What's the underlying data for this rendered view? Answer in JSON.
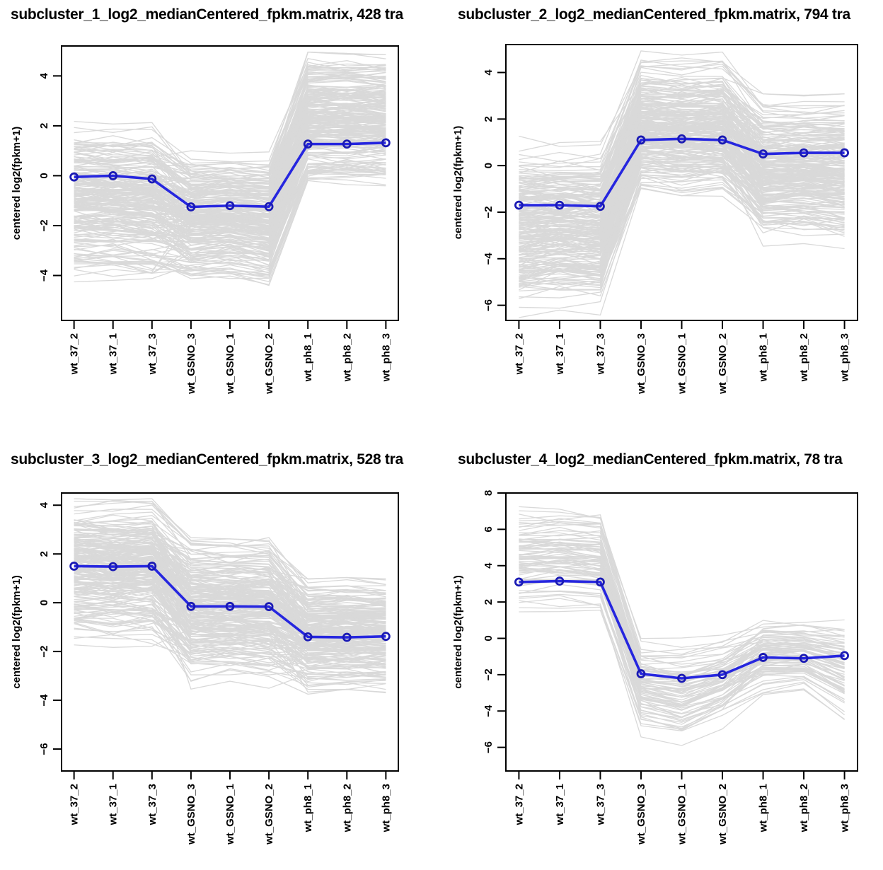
{
  "figure": {
    "background": "#ffffff",
    "axis_color": "#000000",
    "median_line_color": "#2626df",
    "median_marker_color": "#1a1ab4",
    "transcript_line_color": "#d7d7d7",
    "ylabel": "centered log2(fpkm+1)",
    "samples": [
      "wt_37_2",
      "wt_37_1",
      "wt_37_3",
      "wt_GSNO_3",
      "wt_GSNO_1",
      "wt_GSNO_2",
      "wt_ph8_1",
      "wt_ph8_2",
      "wt_ph8_3"
    ]
  },
  "chart_data": [
    {
      "type": "line",
      "title": "subcluster_1_log2_medianCentered_fpkm.matrix, 428 tra",
      "subcluster": 1,
      "transcript_count": 428,
      "categories": [
        "wt_37_2",
        "wt_37_1",
        "wt_37_3",
        "wt_GSNO_3",
        "wt_GSNO_1",
        "wt_GSNO_2",
        "wt_ph8_1",
        "wt_ph8_2",
        "wt_ph8_3"
      ],
      "xlabel": "",
      "ylabel": "centered log2(fpkm+1)",
      "ylim": [
        -5.8,
        5.2
      ],
      "yticks": [
        -4,
        -2,
        0,
        2,
        4
      ],
      "grid": false,
      "legend_position": "none",
      "series": [
        {
          "name": "median",
          "color": "#2626df",
          "values": [
            -0.05,
            0.0,
            -0.13,
            -1.25,
            -1.2,
            -1.24,
            1.27,
            1.27,
            1.32
          ]
        },
        {
          "name": "transcript-cloud-upper-envelope",
          "color": "#d7d7d7",
          "values": [
            2.0,
            1.9,
            1.95,
            0.85,
            0.9,
            0.8,
            4.8,
            4.75,
            4.7
          ]
        },
        {
          "name": "transcript-cloud-lower-envelope",
          "color": "#d7d7d7",
          "values": [
            -3.9,
            -3.85,
            -4.0,
            -4.1,
            -4.0,
            -4.3,
            -0.3,
            -0.25,
            -0.3
          ]
        }
      ]
    },
    {
      "type": "line",
      "title": "subcluster_2_log2_medianCentered_fpkm.matrix, 794 tra",
      "subcluster": 2,
      "transcript_count": 794,
      "categories": [
        "wt_37_2",
        "wt_37_1",
        "wt_37_3",
        "wt_GSNO_3",
        "wt_GSNO_1",
        "wt_GSNO_2",
        "wt_ph8_1",
        "wt_ph8_2",
        "wt_ph8_3"
      ],
      "xlabel": "",
      "ylabel": "centered log2(fpkm+1)",
      "ylim": [
        -6.65,
        5.2
      ],
      "yticks": [
        -6,
        -4,
        -2,
        0,
        2,
        4
      ],
      "grid": false,
      "legend_position": "none",
      "series": [
        {
          "name": "median",
          "color": "#2626df",
          "values": [
            -1.7,
            -1.7,
            -1.75,
            1.1,
            1.15,
            1.1,
            0.5,
            0.55,
            0.55
          ]
        },
        {
          "name": "transcript-cloud-upper-envelope",
          "color": "#d7d7d7",
          "values": [
            1.05,
            0.95,
            1.0,
            4.75,
            4.75,
            4.7,
            2.9,
            2.85,
            2.9
          ]
        },
        {
          "name": "transcript-cloud-lower-envelope",
          "color": "#d7d7d7",
          "values": [
            -6.1,
            -5.8,
            -6.0,
            -1.15,
            -1.3,
            -1.2,
            -3.1,
            -3.0,
            -3.2
          ]
        }
      ]
    },
    {
      "type": "line",
      "title": "subcluster_3_log2_medianCentered_fpkm.matrix, 528 tra",
      "subcluster": 3,
      "transcript_count": 528,
      "categories": [
        "wt_37_2",
        "wt_37_1",
        "wt_37_3",
        "wt_GSNO_3",
        "wt_GSNO_1",
        "wt_GSNO_2",
        "wt_ph8_1",
        "wt_ph8_2",
        "wt_ph8_3"
      ],
      "xlabel": "",
      "ylabel": "centered log2(fpkm+1)",
      "ylim": [
        -6.9,
        4.5
      ],
      "yticks": [
        -6,
        -4,
        -2,
        0,
        2,
        4
      ],
      "grid": false,
      "legend_position": "none",
      "series": [
        {
          "name": "median",
          "color": "#2626df",
          "values": [
            1.5,
            1.48,
            1.5,
            -0.15,
            -0.15,
            -0.16,
            -1.4,
            -1.42,
            -1.38
          ]
        },
        {
          "name": "transcript-cloud-upper-envelope",
          "color": "#d7d7d7",
          "values": [
            4.1,
            4.05,
            4.1,
            2.5,
            2.45,
            2.5,
            0.85,
            0.9,
            0.85
          ]
        },
        {
          "name": "transcript-cloud-lower-envelope",
          "color": "#d7d7d7",
          "values": [
            -1.4,
            -1.5,
            -1.45,
            -3.2,
            -3.15,
            -3.3,
            -3.6,
            -3.55,
            -3.6
          ]
        }
      ]
    },
    {
      "type": "line",
      "title": "subcluster_4_log2_medianCentered_fpkm.matrix, 78 tra",
      "subcluster": 4,
      "transcript_count": 78,
      "categories": [
        "wt_37_2",
        "wt_37_1",
        "wt_37_3",
        "wt_GSNO_3",
        "wt_GSNO_1",
        "wt_GSNO_2",
        "wt_ph8_1",
        "wt_ph8_2",
        "wt_ph8_3"
      ],
      "xlabel": "",
      "ylabel": "centered log2(fpkm+1)",
      "ylim": [
        -7.3,
        8.0
      ],
      "yticks": [
        -6,
        -4,
        -2,
        0,
        2,
        4,
        6,
        8
      ],
      "grid": false,
      "legend_position": "none",
      "series": [
        {
          "name": "median",
          "color": "#2626df",
          "values": [
            3.1,
            3.15,
            3.1,
            -1.95,
            -2.2,
            -2.0,
            -1.05,
            -1.1,
            -0.95
          ]
        },
        {
          "name": "transcript-cloud-upper-envelope",
          "color": "#d7d7d7",
          "values": [
            7.5,
            7.45,
            7.3,
            0.3,
            0.25,
            0.4,
            1.3,
            1.25,
            1.3
          ]
        },
        {
          "name": "transcript-cloud-lower-envelope",
          "color": "#d7d7d7",
          "values": [
            1.1,
            1.2,
            1.1,
            -5.5,
            -6.2,
            -5.0,
            -3.2,
            -3.0,
            -4.6
          ]
        }
      ]
    }
  ]
}
